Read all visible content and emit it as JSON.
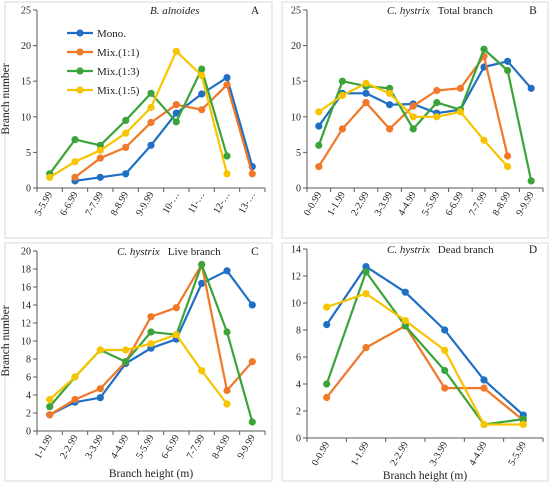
{
  "colors": {
    "Mono.": "#1f6fc5",
    "Mix.(1:1)": "#f07828",
    "Mix.(1:3)": "#3aa33a",
    "Mix.(1:5)": "#f7c400"
  },
  "legend": [
    "Mono.",
    "Mix.(1:1)",
    "Mix.(1:3)",
    "Mix.(1:5)"
  ],
  "chart_data": [
    {
      "type": "line",
      "panel": "A",
      "title_species": "B. alnoides",
      "title_rest": "",
      "ylabel": "Branch number",
      "xlabel": "",
      "ylim": [
        0,
        25
      ],
      "yticks": [
        0,
        5,
        10,
        15,
        20,
        25
      ],
      "categories": [
        "5-5.99",
        "6-6.99",
        "7-7.99",
        "8-8.99",
        "9-9.99",
        "10-…",
        "11-…",
        "12-…",
        "13-…"
      ],
      "series": [
        {
          "name": "Mono.",
          "values": [
            null,
            1.0,
            1.5,
            2.0,
            6.0,
            10.5,
            13.2,
            15.5,
            3.0
          ]
        },
        {
          "name": "Mix.(1:1)",
          "values": [
            null,
            1.5,
            4.2,
            5.7,
            9.2,
            11.7,
            11.0,
            14.5,
            2.0
          ]
        },
        {
          "name": "Mix.(1:3)",
          "values": [
            2.0,
            6.8,
            6.0,
            9.5,
            13.3,
            9.3,
            16.7,
            4.5,
            null
          ]
        },
        {
          "name": "Mix.(1:5)",
          "values": [
            1.5,
            3.7,
            5.3,
            7.7,
            11.3,
            19.2,
            15.8,
            2.0,
            null
          ]
        }
      ]
    },
    {
      "type": "line",
      "panel": "B",
      "title_species": "C. hystrix",
      "title_rest": "Total branch",
      "ylabel": "",
      "xlabel": "",
      "ylim": [
        0,
        25
      ],
      "yticks": [
        0,
        5,
        10,
        15,
        20,
        25
      ],
      "categories": [
        "0-0.99",
        "1-1.99",
        "2-2.99",
        "3-3.99",
        "4-4.99",
        "5-5.99",
        "6-6.99",
        "7-7.99",
        "8-8.99",
        "9-9.99"
      ],
      "series": [
        {
          "name": "Mono.",
          "values": [
            8.7,
            13.3,
            13.3,
            11.7,
            11.8,
            10.5,
            11.0,
            17.0,
            17.8,
            14.0
          ]
        },
        {
          "name": "Mix.(1:1)",
          "values": [
            3.0,
            8.3,
            12.0,
            8.3,
            11.5,
            13.7,
            14.0,
            18.5,
            4.5,
            null
          ]
        },
        {
          "name": "Mix.(1:3)",
          "values": [
            6.0,
            15.0,
            14.3,
            14.0,
            8.3,
            12.0,
            11.0,
            19.5,
            16.5,
            1.0
          ]
        },
        {
          "name": "Mix.(1:5)",
          "values": [
            10.7,
            13.0,
            14.7,
            13.3,
            10.0,
            10.0,
            10.7,
            6.7,
            3.0,
            null
          ]
        }
      ]
    },
    {
      "type": "line",
      "panel": "C",
      "title_species": "C. hystrix",
      "title_rest": "Live branch",
      "ylabel": "Branch number",
      "xlabel": "Branch height (m)",
      "ylim": [
        0,
        20
      ],
      "yticks": [
        0,
        2,
        4,
        6,
        8,
        10,
        12,
        14,
        16,
        18,
        20
      ],
      "categories": [
        "1-1.99",
        "2-2.99",
        "3-3.99",
        "4-4.99",
        "5-5.99",
        "6-6.99",
        "7-7.99",
        "8-8.99",
        "9-9.99"
      ],
      "series": [
        {
          "name": "Mono.",
          "values": [
            1.8,
            3.2,
            3.7,
            7.5,
            9.2,
            10.2,
            16.4,
            17.8,
            14.0
          ]
        },
        {
          "name": "Mix.(1:1)",
          "values": [
            1.8,
            3.5,
            4.7,
            7.7,
            12.7,
            13.7,
            18.5,
            4.5,
            7.7
          ]
        },
        {
          "name": "Mix.(1:3)",
          "values": [
            2.7,
            6.0,
            9.0,
            7.7,
            11.0,
            10.7,
            18.5,
            11.0,
            1.0
          ]
        },
        {
          "name": "Mix.(1:5)",
          "values": [
            3.5,
            6.0,
            9.0,
            9.0,
            9.7,
            10.7,
            6.7,
            3.0,
            null
          ]
        }
      ]
    },
    {
      "type": "line",
      "panel": "D",
      "title_species": "C. hystrix",
      "title_rest": "Dead branch",
      "ylabel": "",
      "xlabel": "Branch height (m)",
      "ylim": [
        0,
        14
      ],
      "yticks": [
        0,
        2,
        4,
        6,
        8,
        10,
        12,
        14
      ],
      "categories": [
        "0-0.99",
        "1-1.99",
        "2-2.99",
        "3-3.99",
        "4-4.99",
        "5-5.99"
      ],
      "series": [
        {
          "name": "Mono.",
          "values": [
            8.4,
            12.7,
            10.8,
            8.0,
            4.3,
            1.7
          ]
        },
        {
          "name": "Mix.(1:1)",
          "values": [
            3.0,
            6.7,
            8.3,
            3.7,
            3.7,
            1.3
          ]
        },
        {
          "name": "Mix.(1:3)",
          "values": [
            4.0,
            12.3,
            8.3,
            5.0,
            1.0,
            1.4
          ]
        },
        {
          "name": "Mix.(1:5)",
          "values": [
            9.7,
            10.7,
            8.7,
            6.5,
            1.0,
            1.0
          ]
        }
      ]
    }
  ]
}
